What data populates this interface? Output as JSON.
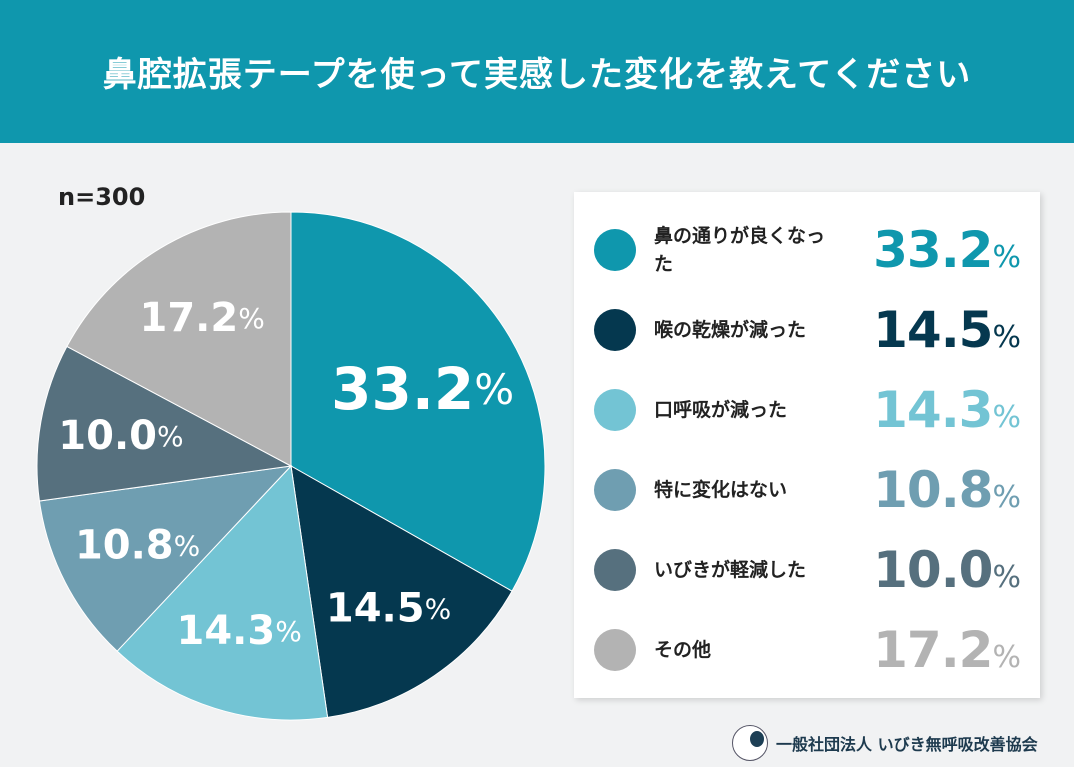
{
  "header": {
    "title": "鼻腔拡張テープを使って実感した変化を教えてください"
  },
  "sample": "n=300",
  "footer": {
    "organization": "一般社団法人 いびき無呼吸改善協会"
  },
  "chart_data": {
    "type": "pie",
    "title": "鼻腔拡張テープを使って実感した変化を教えてください",
    "unit": "%",
    "start": "top, clockwise",
    "slices": [
      {
        "label": "鼻の通りが良くなった",
        "value": 33.2,
        "display": "33.2",
        "color": "#0f97ad"
      },
      {
        "label": "喉の乾燥が減った",
        "value": 14.5,
        "display": "14.5",
        "color": "#05384f"
      },
      {
        "label": "口呼吸が減った",
        "value": 14.3,
        "display": "14.3",
        "color": "#73c4d4"
      },
      {
        "label": "特に変化はない",
        "value": 10.8,
        "display": "10.8",
        "color": "#6f9eb1"
      },
      {
        "label": "いびきが軽減した",
        "value": 10.0,
        "display": "10.0",
        "color": "#56707e"
      },
      {
        "label": "その他",
        "value": 17.2,
        "display": "17.2",
        "color": "#b3b3b3"
      }
    ],
    "legend": "right"
  }
}
